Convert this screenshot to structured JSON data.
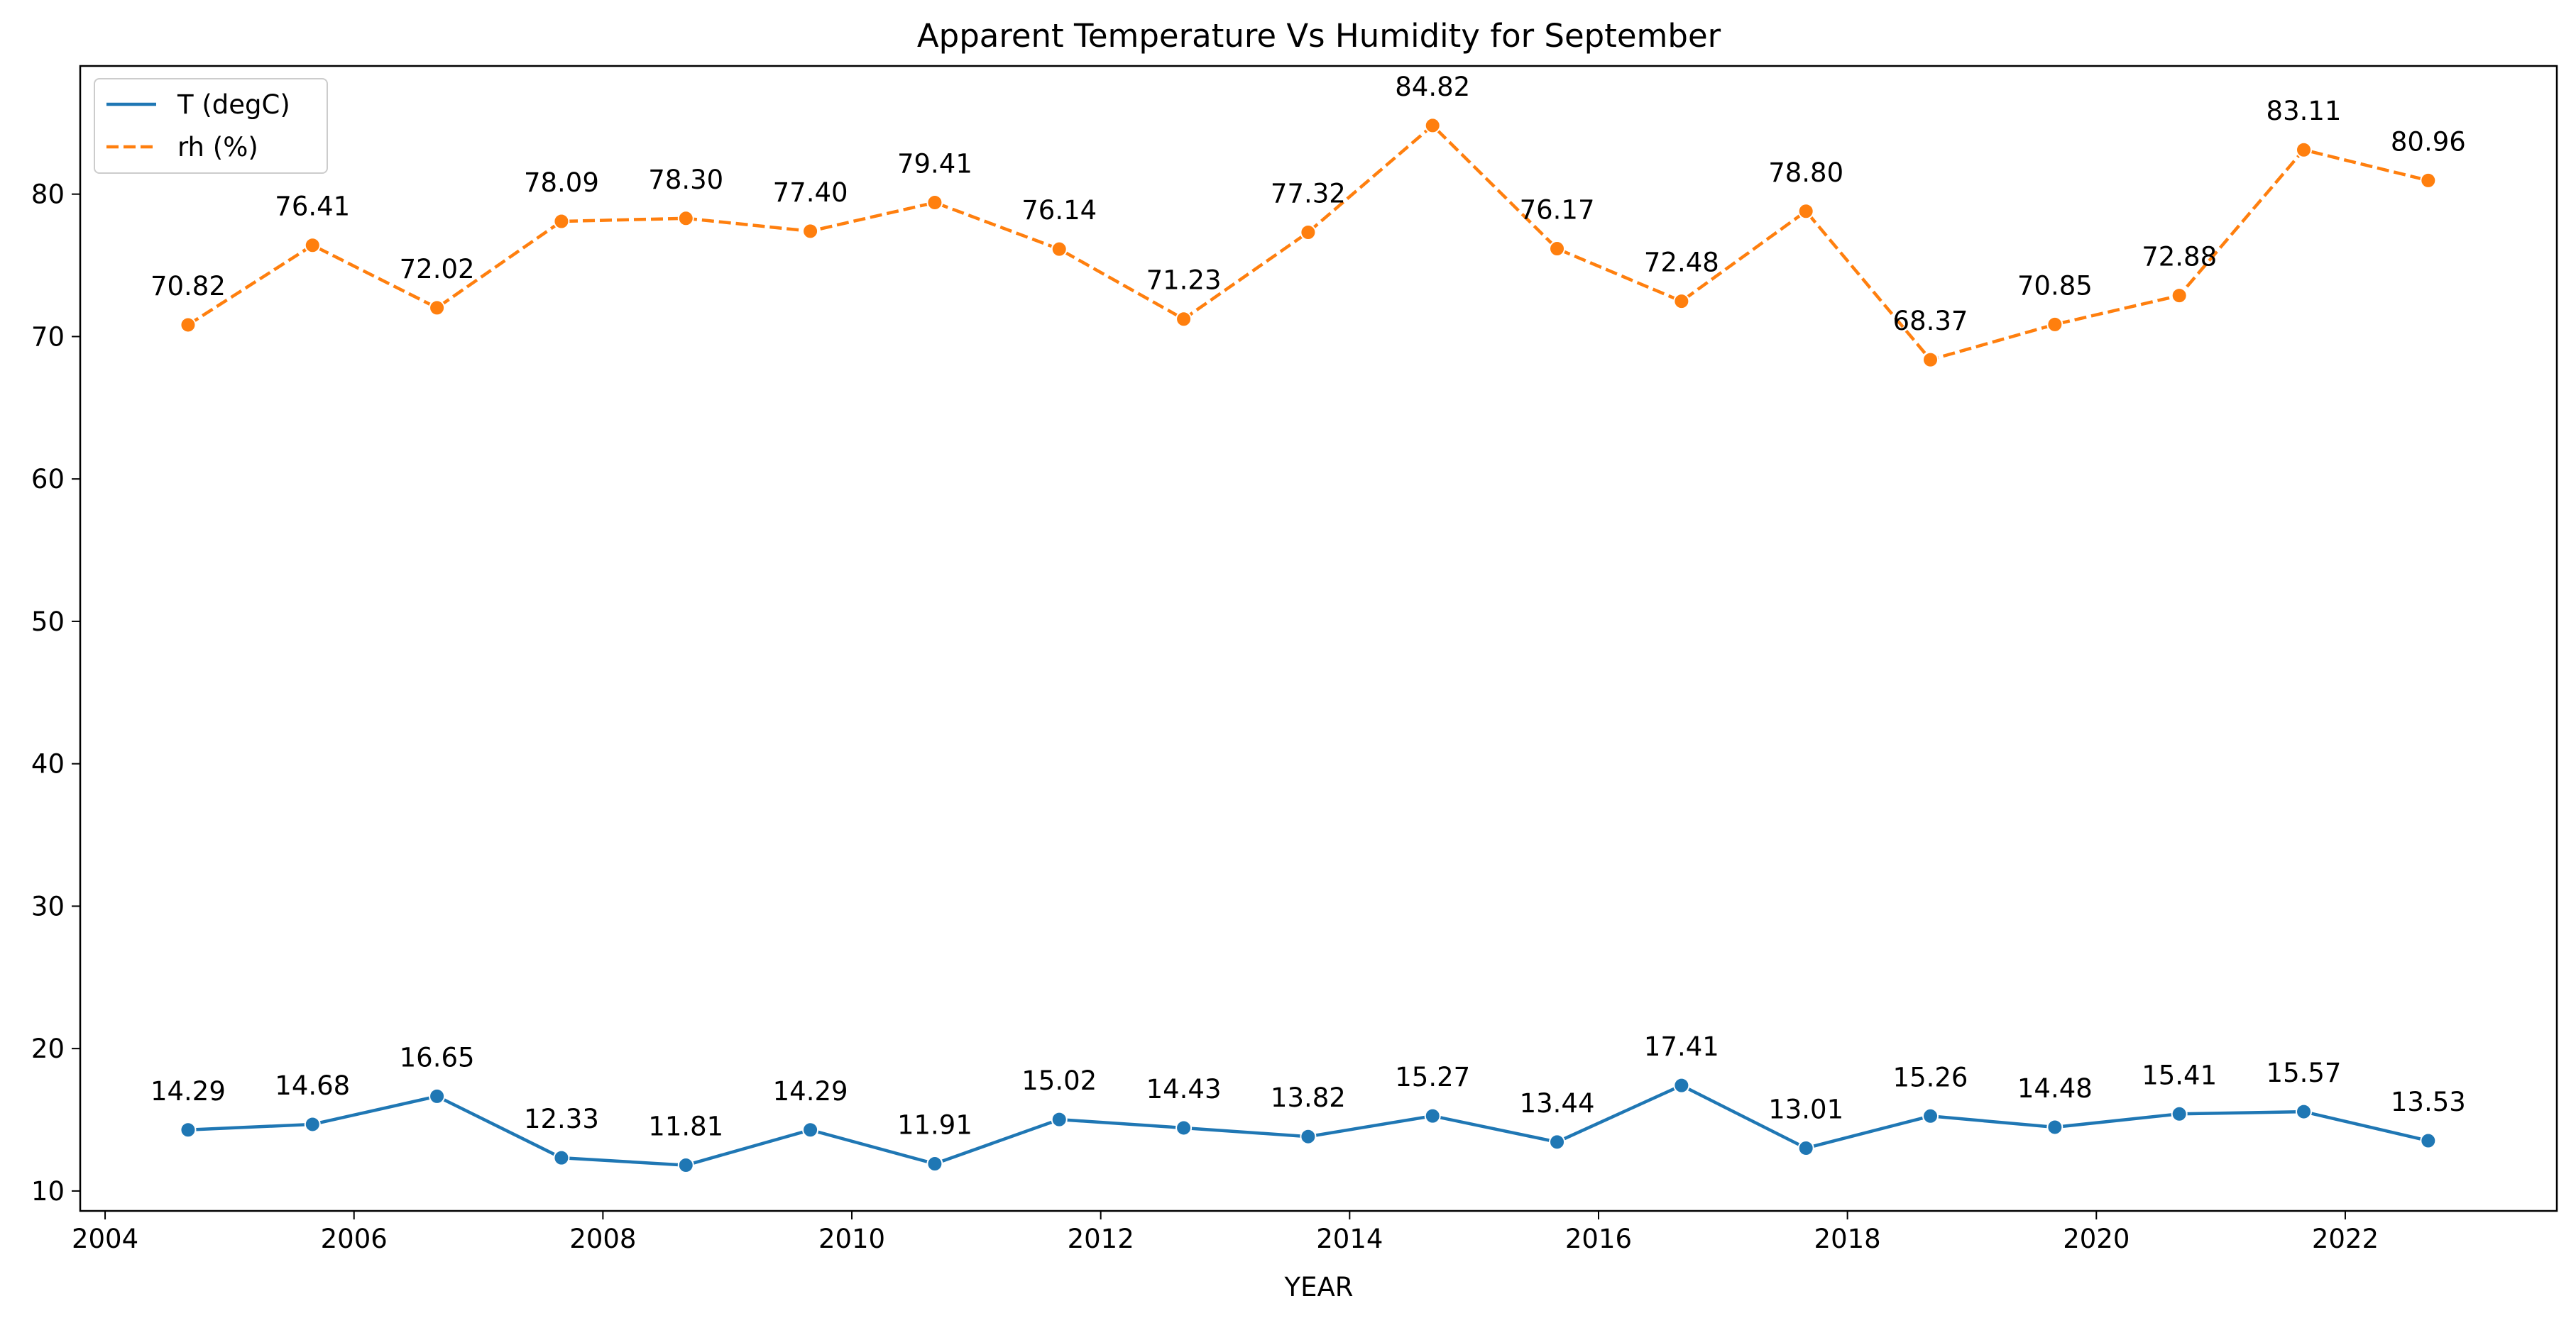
{
  "chart_data": {
    "type": "line",
    "title": "Apparent Temperature Vs Humidity for September",
    "xlabel": "YEAR",
    "ylabel": "",
    "xlim": [
      2003.8,
      2023.7
    ],
    "ylim": [
      8.6,
      89.0
    ],
    "xticks": [
      2004,
      2006,
      2008,
      2010,
      2012,
      2014,
      2016,
      2018,
      2020,
      2022
    ],
    "yticks": [
      10,
      20,
      30,
      40,
      50,
      60,
      70,
      80
    ],
    "grid": false,
    "legend_position": "top-left",
    "x": [
      "2004-09-01",
      "2005-09-01",
      "2006-09-01",
      "2007-09-01",
      "2008-09-01",
      "2009-09-01",
      "2010-09-01",
      "2011-09-01",
      "2012-09-01",
      "2013-09-01",
      "2014-09-01",
      "2015-09-01",
      "2016-09-01",
      "2017-09-01",
      "2018-09-01",
      "2019-09-01",
      "2020-09-01",
      "2021-09-01",
      "2022-09-01"
    ],
    "series": [
      {
        "name": "T (degC)",
        "color": "#1f77b4",
        "dashed": false,
        "values": [
          14.29,
          14.68,
          16.65,
          12.33,
          11.81,
          14.29,
          11.91,
          15.02,
          14.43,
          13.82,
          15.27,
          13.44,
          17.41,
          13.01,
          15.26,
          14.48,
          15.41,
          15.57,
          13.53
        ],
        "labels": [
          "14.29",
          "14.68",
          "16.65",
          "12.33",
          "11.81",
          "14.29",
          "11.91",
          "15.02",
          "14.43",
          "13.82",
          "15.27",
          "13.44",
          "17.41",
          "13.01",
          "15.26",
          "14.48",
          "15.41",
          "15.57",
          "13.53"
        ]
      },
      {
        "name": "rh (%)",
        "color": "#ff7f0e",
        "dashed": true,
        "values": [
          70.82,
          76.41,
          72.02,
          78.09,
          78.3,
          77.4,
          79.41,
          76.14,
          71.23,
          77.32,
          84.82,
          76.17,
          72.48,
          78.8,
          68.37,
          70.85,
          72.88,
          83.11,
          80.96
        ],
        "labels": [
          "70.82",
          "76.41",
          "72.02",
          "78.09",
          "78.30",
          "77.40",
          "79.41",
          "76.14",
          "71.23",
          "77.32",
          "84.82",
          "76.17",
          "72.48",
          "78.80",
          "68.37",
          "70.85",
          "72.88",
          "83.11",
          "80.96"
        ]
      }
    ]
  }
}
